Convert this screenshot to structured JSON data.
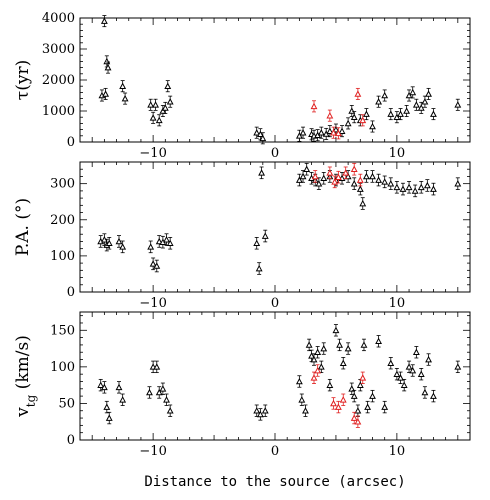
{
  "figure": {
    "xlabel": "Distance to the source (arcsec)"
  },
  "chart_data": [
    {
      "type": "scatter",
      "ylabel": "τ(yr)",
      "xlim": [
        -16,
        16
      ],
      "ylim": [
        0,
        4000
      ],
      "xticks": [
        -10,
        0,
        10
      ],
      "yticks": [
        0,
        1000,
        2000,
        3000,
        4000
      ],
      "series": [
        {
          "color": "#000000",
          "points": [
            [
              -14,
              3900
            ],
            [
              -13.8,
              2600
            ],
            [
              -13.7,
              2400
            ],
            [
              -14.2,
              1500
            ],
            [
              -13.9,
              1550
            ],
            [
              -12.5,
              1800
            ],
            [
              -12.3,
              1400
            ],
            [
              -10.2,
              1200
            ],
            [
              -9.8,
              1200
            ],
            [
              -10,
              780
            ],
            [
              -9.5,
              700
            ],
            [
              -9.2,
              1000
            ],
            [
              -9,
              1100
            ],
            [
              -8.8,
              1800
            ],
            [
              -8.6,
              1300
            ],
            [
              -1.5,
              300
            ],
            [
              -1.2,
              250
            ],
            [
              -1,
              120
            ],
            [
              2,
              200
            ],
            [
              2.3,
              300
            ],
            [
              3,
              250
            ],
            [
              3.2,
              200
            ],
            [
              3.5,
              220
            ],
            [
              3.8,
              300
            ],
            [
              4.2,
              260
            ],
            [
              4.5,
              350
            ],
            [
              5,
              400
            ],
            [
              5.5,
              350
            ],
            [
              6,
              600
            ],
            [
              6.3,
              1000
            ],
            [
              6.5,
              800
            ],
            [
              7,
              700
            ],
            [
              7.5,
              900
            ],
            [
              8,
              500
            ],
            [
              8.5,
              1300
            ],
            [
              9,
              1500
            ],
            [
              9.5,
              900
            ],
            [
              10,
              800
            ],
            [
              10.3,
              900
            ],
            [
              10.8,
              1000
            ],
            [
              11,
              1500
            ],
            [
              11.3,
              1600
            ],
            [
              11.6,
              1200
            ],
            [
              12,
              1100
            ],
            [
              12.3,
              1300
            ],
            [
              12.6,
              1550
            ],
            [
              13,
              900
            ],
            [
              15,
              1200
            ]
          ]
        },
        {
          "color": "#e02020",
          "points": [
            [
              3.2,
              1150
            ],
            [
              4.5,
              850
            ],
            [
              4.8,
              300
            ],
            [
              5.2,
              280
            ],
            [
              6.8,
              1550
            ],
            [
              7.2,
              700
            ]
          ]
        }
      ]
    },
    {
      "type": "scatter",
      "ylabel": "P.A. (°)",
      "xlim": [
        -16,
        16
      ],
      "ylim": [
        0,
        360
      ],
      "xticks": [
        -10,
        0,
        10
      ],
      "yticks": [
        0,
        100,
        200,
        300
      ],
      "series": [
        {
          "color": "#000000",
          "points": [
            [
              -14.3,
              140
            ],
            [
              -14,
              145
            ],
            [
              -13.8,
              130
            ],
            [
              -13.6,
              135
            ],
            [
              -12.8,
              140
            ],
            [
              -12.5,
              125
            ],
            [
              -10.2,
              125
            ],
            [
              -10,
              78
            ],
            [
              -9.7,
              72
            ],
            [
              -9.5,
              140
            ],
            [
              -9.2,
              138
            ],
            [
              -8.9,
              145
            ],
            [
              -8.6,
              135
            ],
            [
              -1.5,
              135
            ],
            [
              -1.3,
              65
            ],
            [
              -1.1,
              330
            ],
            [
              -0.8,
              155
            ],
            [
              2,
              310
            ],
            [
              2.3,
              320
            ],
            [
              2.6,
              340
            ],
            [
              3,
              315
            ],
            [
              3.3,
              310
            ],
            [
              3.6,
              300
            ],
            [
              4,
              315
            ],
            [
              4.5,
              320
            ],
            [
              5,
              310
            ],
            [
              5.5,
              315
            ],
            [
              6,
              320
            ],
            [
              6.5,
              300
            ],
            [
              7,
              285
            ],
            [
              7.2,
              245
            ],
            [
              7.5,
              320
            ],
            [
              8,
              320
            ],
            [
              8.5,
              310
            ],
            [
              9,
              305
            ],
            [
              9.5,
              300
            ],
            [
              10,
              290
            ],
            [
              10.5,
              285
            ],
            [
              11,
              290
            ],
            [
              11.5,
              280
            ],
            [
              12,
              290
            ],
            [
              12.5,
              295
            ],
            [
              13,
              285
            ],
            [
              15,
              300
            ]
          ]
        },
        {
          "color": "#e02020",
          "points": [
            [
              3.3,
              320
            ],
            [
              4.5,
              330
            ],
            [
              4.9,
              305
            ],
            [
              5.2,
              318
            ],
            [
              5.8,
              330
            ],
            [
              6.5,
              340
            ],
            [
              7,
              310
            ]
          ]
        }
      ]
    },
    {
      "type": "scatter",
      "ylabel": "v_tg (km/s)",
      "xlim": [
        -16,
        16
      ],
      "ylim": [
        0,
        175
      ],
      "xticks": [
        -10,
        0,
        10
      ],
      "yticks": [
        0,
        50,
        100,
        150
      ],
      "series": [
        {
          "color": "#000000",
          "points": [
            [
              -14.3,
              75
            ],
            [
              -14,
              72
            ],
            [
              -13.8,
              45
            ],
            [
              -13.6,
              30
            ],
            [
              -12.8,
              72
            ],
            [
              -12.5,
              55
            ],
            [
              -10.3,
              65
            ],
            [
              -10,
              100
            ],
            [
              -9.7,
              100
            ],
            [
              -9.5,
              65
            ],
            [
              -9.2,
              70
            ],
            [
              -8.9,
              55
            ],
            [
              -8.6,
              40
            ],
            [
              -1.5,
              40
            ],
            [
              -1.2,
              35
            ],
            [
              -0.8,
              40
            ],
            [
              2,
              80
            ],
            [
              2.2,
              55
            ],
            [
              2.5,
              40
            ],
            [
              2.8,
              130
            ],
            [
              3,
              115
            ],
            [
              3.2,
              110
            ],
            [
              3.5,
              120
            ],
            [
              3.8,
              100
            ],
            [
              4,
              125
            ],
            [
              4.5,
              75
            ],
            [
              5,
              150
            ],
            [
              5.3,
              130
            ],
            [
              5.6,
              105
            ],
            [
              6,
              125
            ],
            [
              6.3,
              70
            ],
            [
              6.5,
              60
            ],
            [
              6.8,
              40
            ],
            [
              7,
              75
            ],
            [
              7.3,
              130
            ],
            [
              7.6,
              45
            ],
            [
              8,
              60
            ],
            [
              8.5,
              135
            ],
            [
              9,
              45
            ],
            [
              9.5,
              105
            ],
            [
              10,
              90
            ],
            [
              10.3,
              85
            ],
            [
              10.6,
              75
            ],
            [
              11,
              100
            ],
            [
              11.3,
              95
            ],
            [
              11.6,
              120
            ],
            [
              12,
              90
            ],
            [
              12.3,
              65
            ],
            [
              12.6,
              110
            ],
            [
              13,
              60
            ],
            [
              15,
              100
            ]
          ]
        },
        {
          "color": "#e02020",
          "points": [
            [
              3.2,
              85
            ],
            [
              3.5,
              95
            ],
            [
              4.8,
              50
            ],
            [
              5.2,
              45
            ],
            [
              5.6,
              55
            ],
            [
              6.5,
              30
            ],
            [
              6.8,
              25
            ],
            [
              7.2,
              85
            ]
          ]
        }
      ]
    }
  ]
}
